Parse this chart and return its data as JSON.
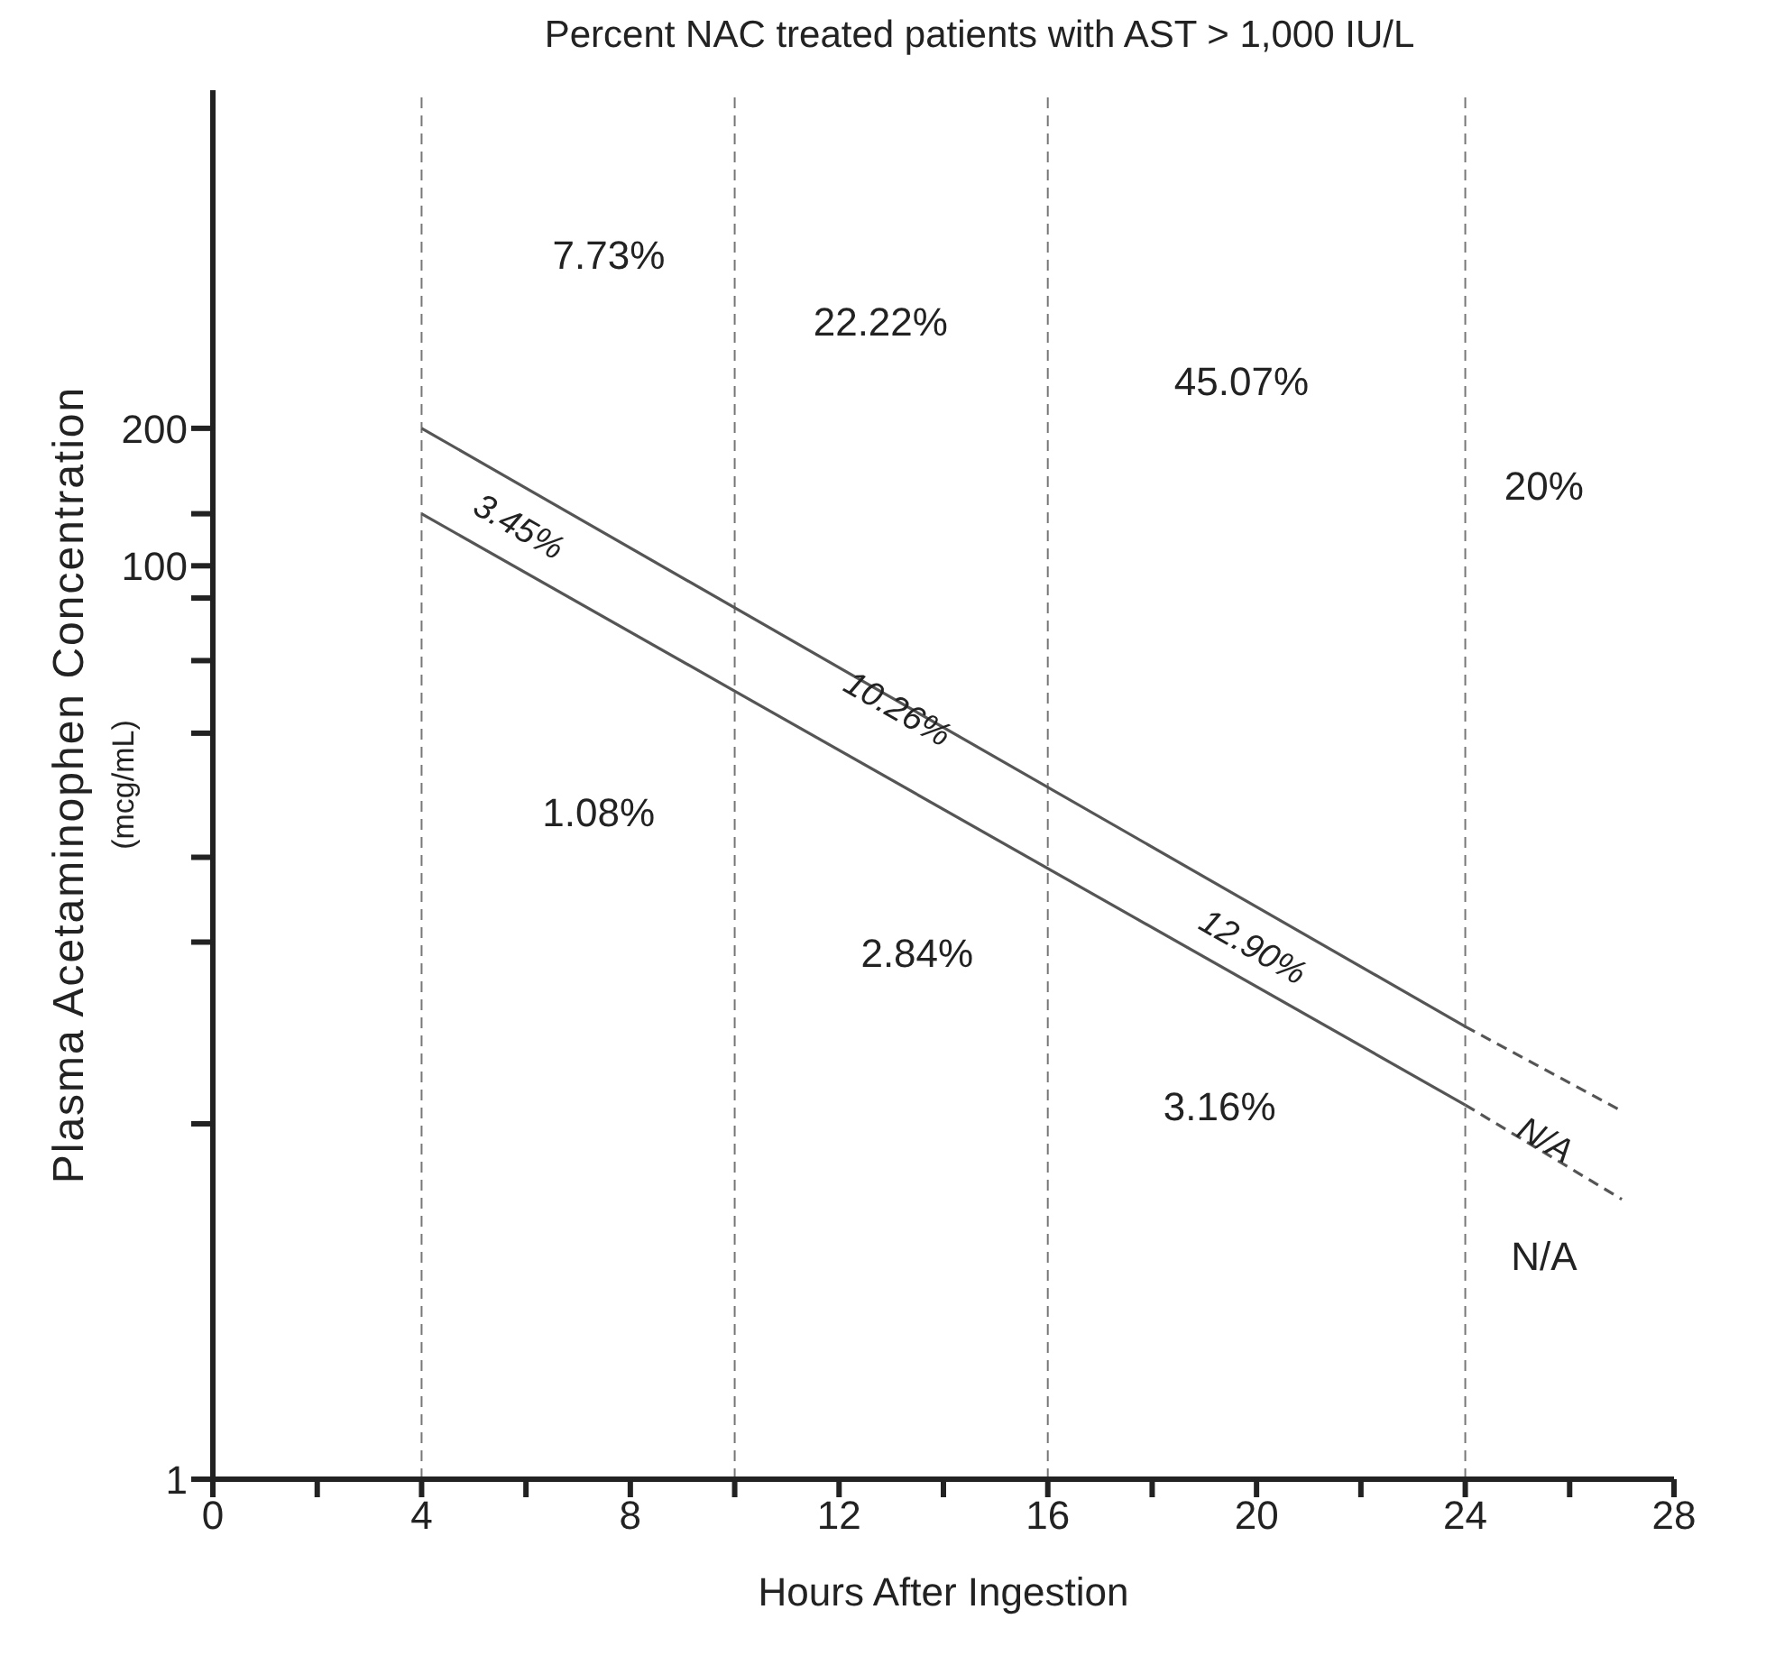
{
  "chart_data": {
    "type": "line",
    "title": "Percent NAC treated patients with AST > 1,000 IU/L",
    "xlabel": "Hours After Ingestion",
    "ylabel": "Plasma Acetaminophen Concentration (mcg/mL)",
    "log": "y",
    "grid": false,
    "marker": "none",
    "xlim": [
      0,
      28
    ],
    "xticks": [
      0,
      {
        "value": 2,
        "label": null
      },
      4,
      {
        "value": 6,
        "label": null
      },
      8,
      {
        "value": 10,
        "label": null
      },
      12,
      {
        "value": 14,
        "label": null
      },
      16,
      {
        "value": 18,
        "label": null
      },
      20,
      {
        "value": 22,
        "label": null
      },
      24,
      {
        "value": 26,
        "label": null
      },
      28
    ],
    "ylim": [
      1,
      1100
    ],
    "yticks": [
      1,
      {
        "value": 6,
        "label": null
      },
      {
        "value": 15,
        "label": null
      },
      {
        "value": 23,
        "label": null
      },
      {
        "value": 43,
        "label": null
      },
      {
        "value": 62,
        "label": null
      },
      {
        "value": 85,
        "label": null
      },
      100,
      {
        "value": 130,
        "label": null
      },
      200
    ],
    "series": [
      {
        "color": "#555555",
        "line_style": "solid",
        "x": [
          4,
          24
        ],
        "values": [
          200,
          9.8
        ]
      },
      {
        "color": "#555555",
        "line_style": "dashed",
        "x": [
          24,
          27
        ],
        "values": [
          9.8,
          6.4
        ]
      },
      {
        "color": "#555555",
        "line_style": "solid",
        "x": [
          4,
          24
        ],
        "values": [
          130,
          6.6
        ]
      },
      {
        "color": "#555555",
        "line_style": "dashed",
        "x": [
          24,
          27
        ],
        "values": [
          6.6,
          4.1
        ]
      }
    ],
    "ref_lines": [
      {
        "axis": "x",
        "value": 4,
        "color": "#777777",
        "line_style": "dashed"
      },
      {
        "axis": "x",
        "value": 10,
        "color": "#777777",
        "line_style": "dashed"
      },
      {
        "axis": "x",
        "value": 16,
        "color": "#777777",
        "line_style": "dashed"
      },
      {
        "axis": "x",
        "value": 24,
        "color": "#777777",
        "line_style": "dashed"
      }
    ],
    "annotations": [
      "7.73%",
      "22.22%",
      "45.07%",
      "20%",
      "3.45%",
      "10.26%",
      "12.90%",
      "N/A",
      "1.08%",
      "2.84%",
      "3.16%",
      "N/A"
    ]
  }
}
